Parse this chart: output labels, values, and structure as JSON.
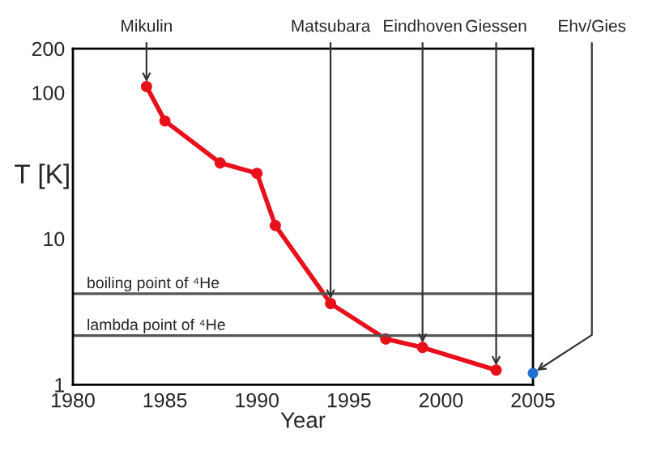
{
  "chart_data": {
    "type": "line",
    "xlabel": "Year",
    "ylabel": "T [K]",
    "log": "y",
    "xlim": [
      1980,
      2005
    ],
    "ylim": [
      1,
      200
    ],
    "xticks": [
      1980,
      1985,
      1990,
      1995,
      2000,
      2005
    ],
    "yticks": [
      1,
      10,
      100,
      200
    ],
    "grid": false,
    "marker": "circle",
    "line_style": "solid",
    "series": [
      {
        "color": "#e8101a",
        "x": [
          1984,
          1985,
          1988,
          1990,
          1991,
          1994,
          1997,
          1999,
          2003
        ],
        "values": [
          110,
          64,
          33,
          28,
          12.3,
          3.6,
          2.06,
          1.8,
          1.26
        ]
      },
      {
        "type": "scatter",
        "color": "#1f6fd0",
        "x": [
          2005
        ],
        "values": [
          1.2
        ]
      }
    ],
    "ref_lines": [
      {
        "axis": "y",
        "value": 4.2,
        "label": "boiling point of ⁴He",
        "color": "#555555"
      },
      {
        "axis": "y",
        "value": 2.17,
        "label": "lambda point of ⁴He",
        "color": "#555555"
      }
    ],
    "annotations": [
      {
        "text": "Mikulin",
        "x": 1984,
        "y": 110
      },
      {
        "text": "Matsubara",
        "x": 1994,
        "y": 3.6
      },
      {
        "text": "Eindhoven",
        "x": 1999,
        "y": 1.8
      },
      {
        "text": "Giessen",
        "x": 2003,
        "y": 1.26
      },
      {
        "text": "Ehv/Gies",
        "x": 2005,
        "y": 1.2
      }
    ]
  }
}
